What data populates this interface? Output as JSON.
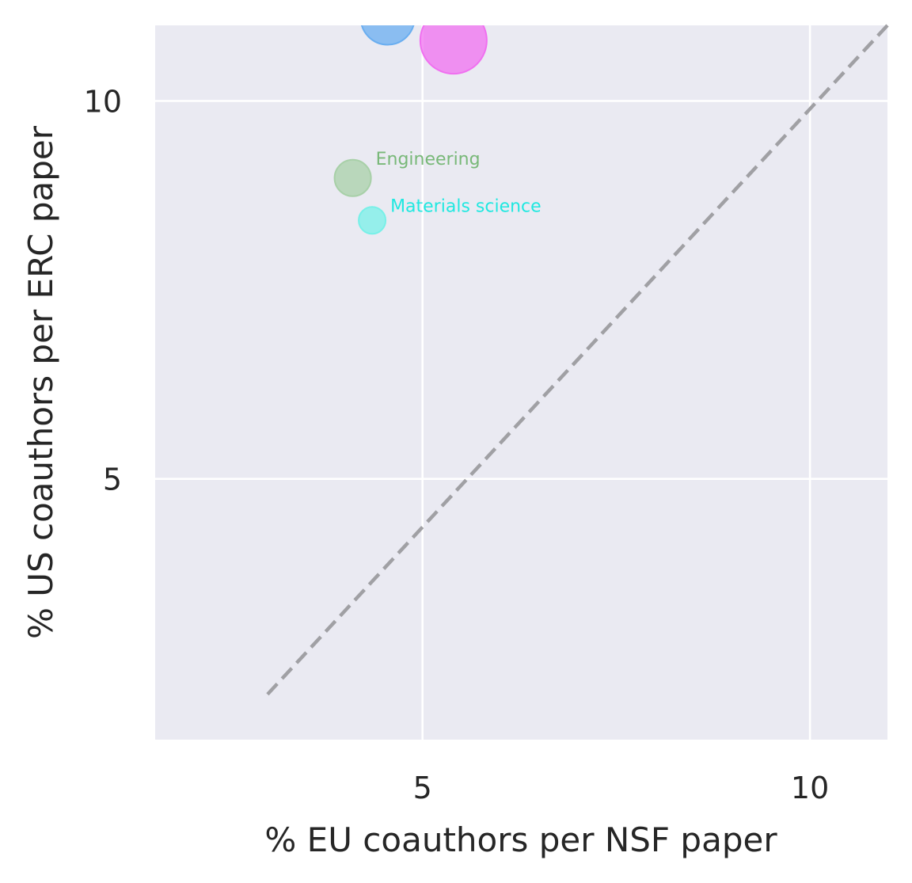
{
  "chart_data": {
    "type": "scatter",
    "title": "",
    "xlabel": "% EU coauthors per NSF paper",
    "ylabel": "% US coauthors per ERC paper",
    "xlim": [
      1.55,
      11.0
    ],
    "ylim": [
      1.55,
      11.0
    ],
    "xticks": [
      5,
      10
    ],
    "yticks": [
      5,
      10
    ],
    "grid": true,
    "legend": "none",
    "reference_line": {
      "style": "dashed",
      "color": "#a0a0a4",
      "from": [
        3.0,
        2.15
      ],
      "to": [
        11.0,
        11.0
      ]
    },
    "points": [
      {
        "x": 4.55,
        "y": 11.1,
        "size": 34,
        "color": "#6aaef0",
        "label": ""
      },
      {
        "x": 5.4,
        "y": 10.8,
        "size": 42,
        "color": "#f070f0",
        "label": ""
      },
      {
        "x": 4.1,
        "y": 8.98,
        "size": 23,
        "color": "#a8d0a8",
        "label": "Engineering",
        "label_color": "#78b878"
      },
      {
        "x": 4.35,
        "y": 8.42,
        "size": 17,
        "color": "#78f0e8",
        "label": "Materials science",
        "label_color": "#20e8e0"
      }
    ]
  }
}
